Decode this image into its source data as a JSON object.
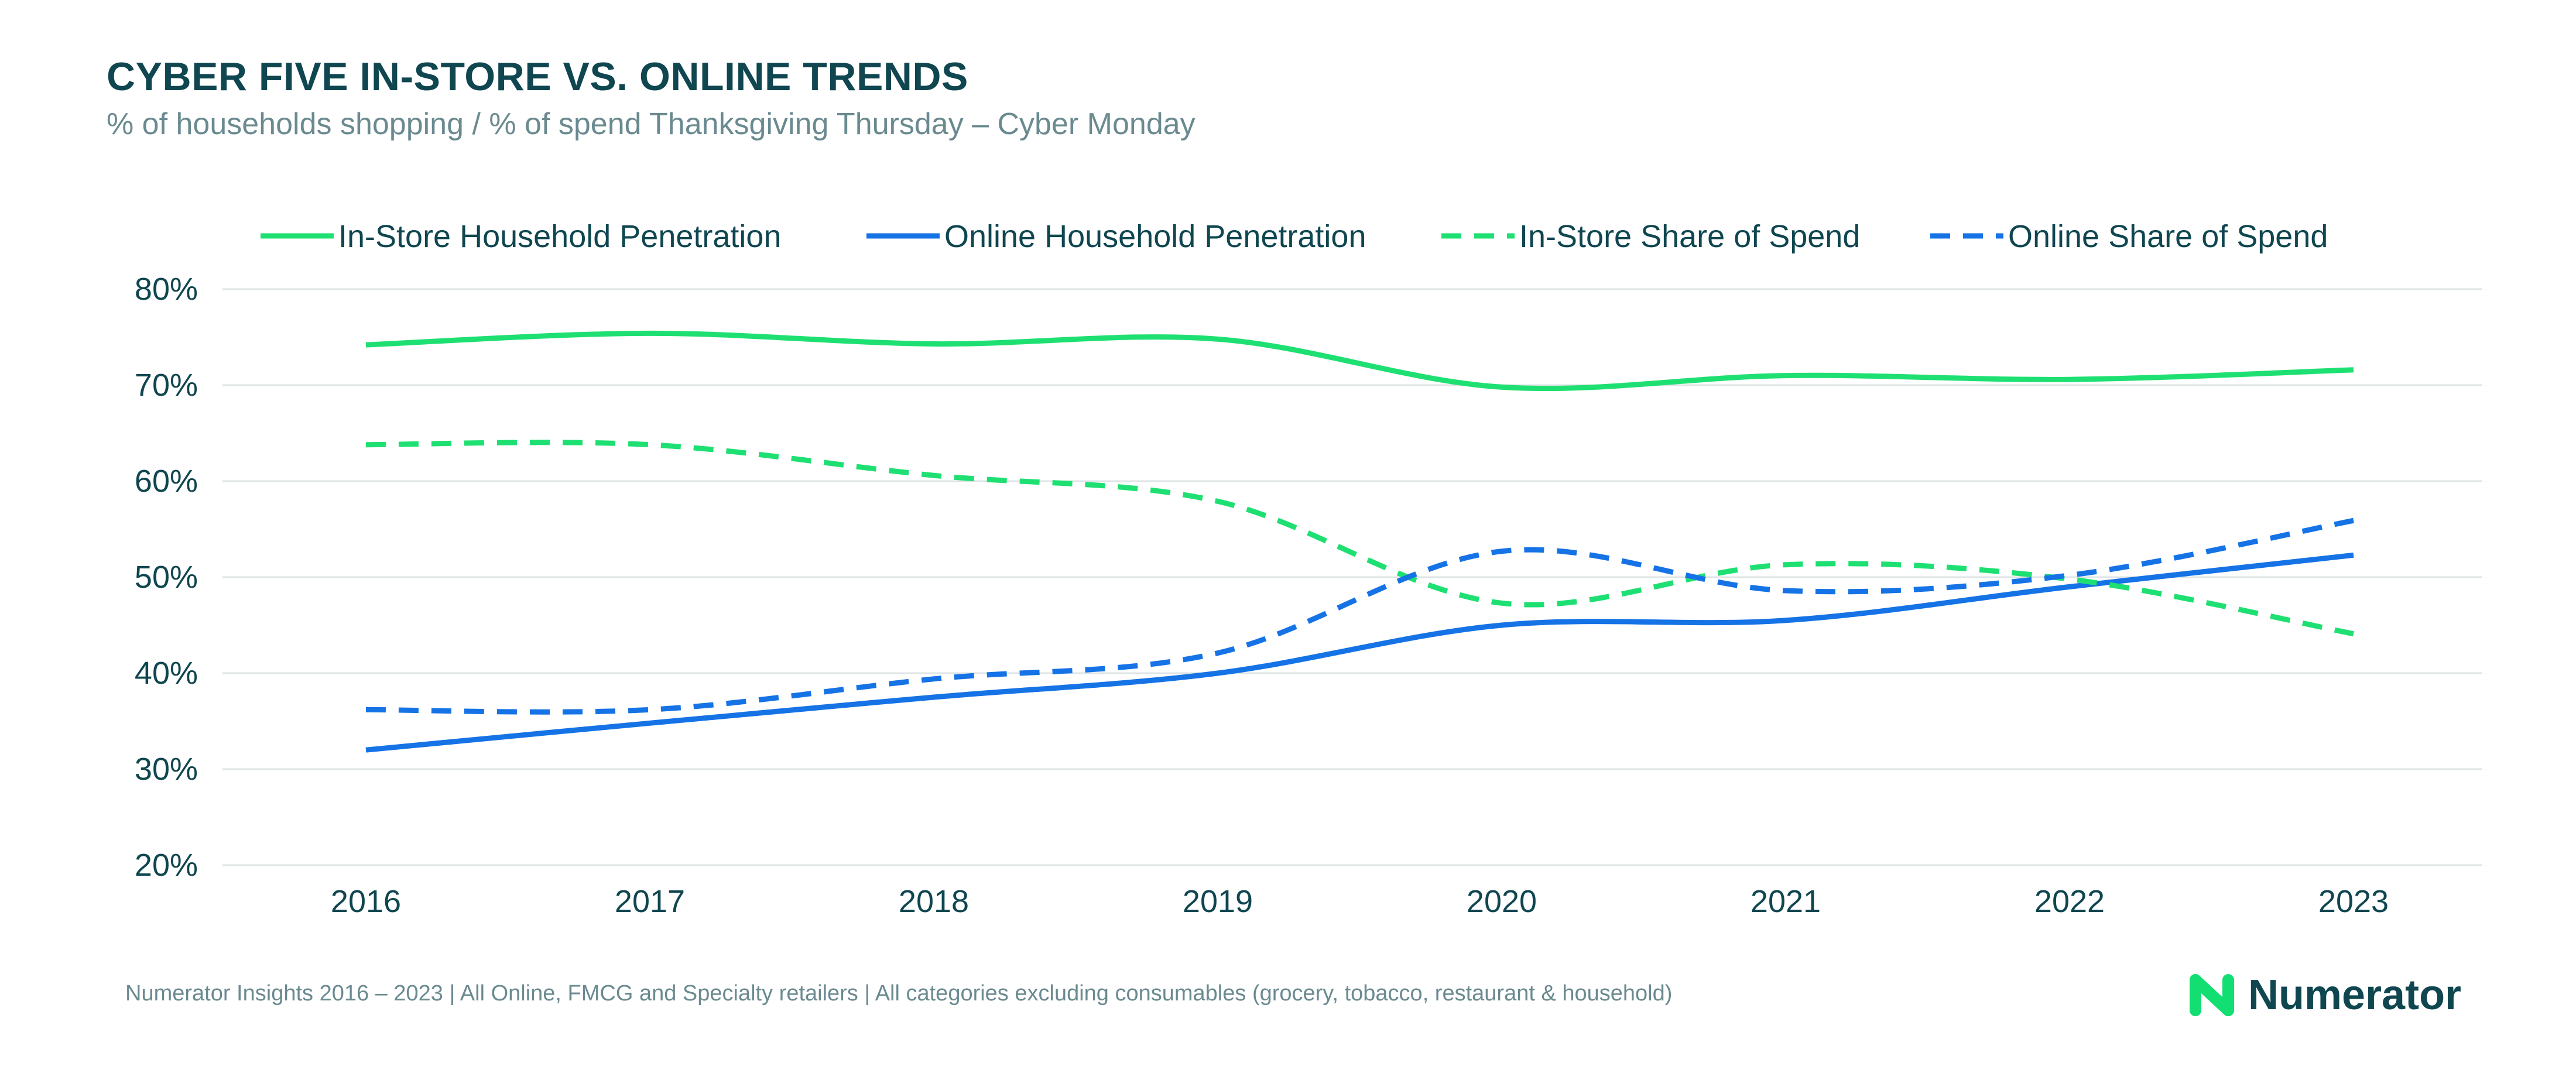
{
  "header": {
    "title": "CYBER FIVE IN-STORE VS. ONLINE TRENDS",
    "subtitle": "% of households shopping / % of spend Thanksgiving Thursday – Cyber Monday"
  },
  "footer": {
    "source": "Numerator Insights 2016 – 2023 | All Online, FMCG and Specialty retailers | All categories excluding consumables (grocery, tobacco, restaurant & household)"
  },
  "brand": {
    "name": "Numerator",
    "icon": "numerator-logo-icon",
    "color": "#12de72"
  },
  "chart_data": {
    "type": "line",
    "title": "CYBER FIVE IN-STORE VS. ONLINE TRENDS",
    "subtitle": "% of households shopping / % of spend Thanksgiving Thursday – Cyber Monday",
    "xlabel": "",
    "ylabel": "",
    "x": [
      "2016",
      "2017",
      "2018",
      "2019",
      "2020",
      "2021",
      "2022",
      "2023"
    ],
    "ylim": [
      20,
      80
    ],
    "yticks": [
      "20%",
      "30%",
      "40%",
      "50%",
      "60%",
      "70%",
      "80%"
    ],
    "ytick_values": [
      20,
      30,
      40,
      50,
      60,
      70,
      80
    ],
    "grid": "horizontal",
    "legend_position": "top",
    "series": [
      {
        "name": "In-Store Household Penetration",
        "color": "#1ee072",
        "dash": "solid",
        "values": [
          74.2,
          75.4,
          74.3,
          74.8,
          69.8,
          71.0,
          70.6,
          71.6
        ]
      },
      {
        "name": "Online Household Penetration",
        "color": "#1573e6",
        "dash": "solid",
        "values": [
          32.0,
          34.8,
          37.5,
          40.0,
          45.0,
          45.5,
          49.0,
          52.3
        ]
      },
      {
        "name": "In-Store Share of Spend",
        "color": "#1ee072",
        "dash": "dashed",
        "values": [
          63.8,
          63.8,
          60.6,
          57.9,
          47.3,
          51.3,
          49.8,
          44.1
        ]
      },
      {
        "name": "Online Share of Spend",
        "color": "#1573e6",
        "dash": "dashed",
        "values": [
          36.2,
          36.2,
          39.4,
          42.1,
          52.7,
          48.6,
          50.2,
          55.9
        ]
      }
    ]
  }
}
